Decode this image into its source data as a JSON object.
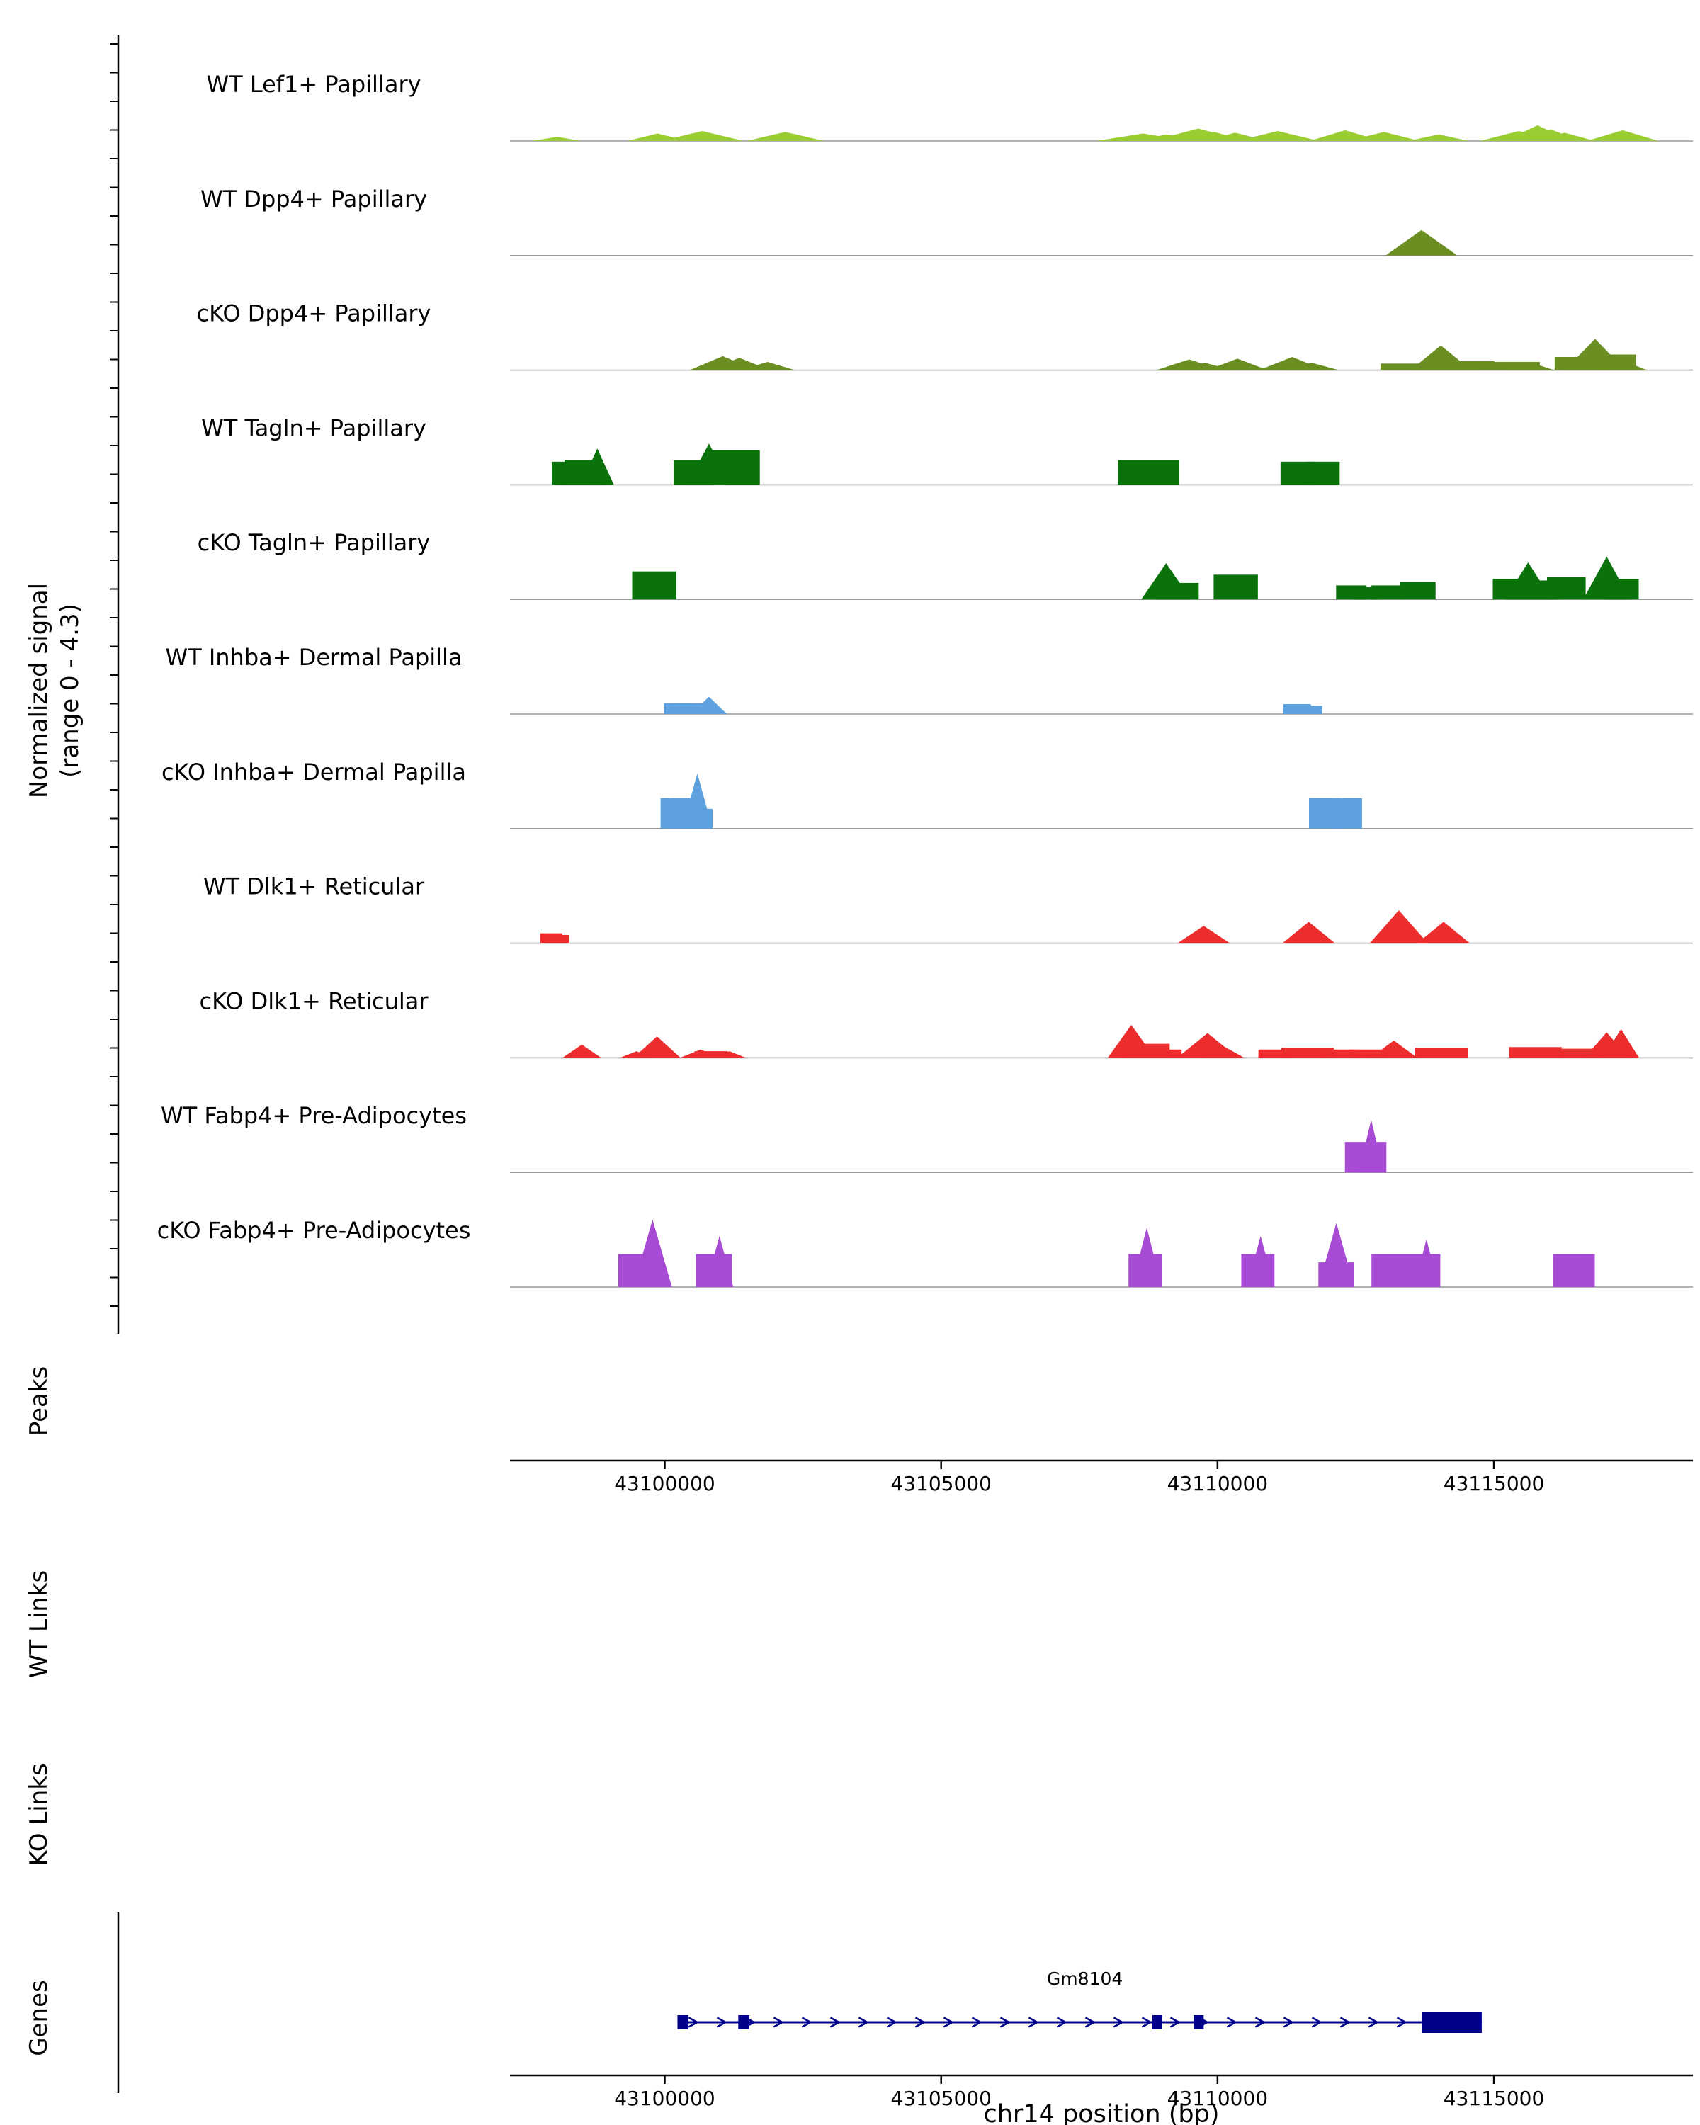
{
  "chart_data": {
    "type": "area",
    "title": "",
    "xlabel": "chr14 position (bp)",
    "ylabel_lines": [
      "Normalized signal",
      "(range 0 - 4.3)"
    ],
    "section_labels": {
      "peaks": "Peaks",
      "wt_links": "WT Links",
      "ko_links": "KO Links",
      "genes": "Genes"
    },
    "x_range": [
      43097200,
      43118600
    ],
    "x_ticks": [
      43100000,
      43105000,
      43110000,
      43115000
    ],
    "y_range_per_track": [
      0,
      4.3
    ],
    "tracks": [
      {
        "label": "WT Lef1+ Papillary",
        "color": "#9ACD32",
        "peaks": [
          [
            43098050,
            900,
            0.25,
            "t"
          ],
          [
            43099870,
            1100,
            0.45,
            "t"
          ],
          [
            43100680,
            1500,
            0.6,
            "t"
          ],
          [
            43100940,
            900,
            0.35,
            "t"
          ],
          [
            43102180,
            1400,
            0.55,
            "t"
          ],
          [
            43108650,
            1700,
            0.45,
            "t"
          ],
          [
            43109080,
            1200,
            0.4,
            "t"
          ],
          [
            43109650,
            1700,
            0.75,
            "t"
          ],
          [
            43109940,
            1200,
            0.55,
            "t"
          ],
          [
            43110320,
            1200,
            0.5,
            "t"
          ],
          [
            43111090,
            1500,
            0.6,
            "t"
          ],
          [
            43112310,
            1300,
            0.65,
            "t"
          ],
          [
            43113010,
            1300,
            0.55,
            "t"
          ],
          [
            43114000,
            1100,
            0.4,
            "t"
          ],
          [
            43115450,
            1400,
            0.6,
            "t"
          ],
          [
            43115790,
            1200,
            0.95,
            "t"
          ],
          [
            43116030,
            1100,
            0.7,
            "t"
          ],
          [
            43116280,
            1100,
            0.5,
            "t"
          ],
          [
            43117330,
            1300,
            0.65,
            "t"
          ]
        ]
      },
      {
        "label": "WT Dpp4+ Papillary",
        "color": "#6B8E23",
        "peaks": [
          [
            43113690,
            1300,
            1.55,
            "t"
          ]
        ]
      },
      {
        "label": "cKO Dpp4+ Papillary",
        "color": "#6B8E23",
        "peaks": [
          [
            43101050,
            1200,
            0.85,
            "t"
          ],
          [
            43101350,
            1100,
            0.75,
            "t"
          ],
          [
            43101860,
            1000,
            0.5,
            "t"
          ],
          [
            43109490,
            1200,
            0.65,
            "t"
          ],
          [
            43109770,
            1000,
            0.45,
            "t"
          ],
          [
            43110360,
            1100,
            0.7,
            "t"
          ],
          [
            43111350,
            1200,
            0.8,
            "t"
          ],
          [
            43111700,
            1000,
            0.45,
            "t"
          ],
          [
            43113400,
            900,
            0.4,
            "r"
          ],
          [
            43114040,
            1100,
            1.5,
            "t"
          ],
          [
            43114280,
            900,
            0.7,
            "t"
          ],
          [
            43114560,
            900,
            0.55,
            "r"
          ],
          [
            43115380,
            900,
            0.5,
            "r"
          ],
          [
            43115640,
            900,
            0.5,
            "t"
          ],
          [
            43116600,
            1000,
            0.8,
            "r"
          ],
          [
            43116830,
            1100,
            1.9,
            "t"
          ],
          [
            43117070,
            1000,
            0.95,
            "r"
          ],
          [
            43117320,
            900,
            0.6,
            "t"
          ]
        ]
      },
      {
        "label": "WT Tagln+ Papillary",
        "color": "#0B720B",
        "peaks": [
          [
            43098310,
            700,
            1.4,
            "r"
          ],
          [
            43098540,
            700,
            1.5,
            "r"
          ],
          [
            43098780,
            600,
            2.2,
            "t"
          ],
          [
            43100660,
            1000,
            1.5,
            "r"
          ],
          [
            43100800,
            800,
            2.5,
            "t"
          ],
          [
            43101270,
            900,
            2.1,
            "r"
          ],
          [
            43108750,
            1100,
            1.5,
            "r"
          ],
          [
            43111440,
            600,
            1.4,
            "r"
          ],
          [
            43111910,
            600,
            1.4,
            "r"
          ]
        ]
      },
      {
        "label": "cKO Tagln+ Papillary",
        "color": "#0B720B",
        "peaks": [
          [
            43099810,
            800,
            1.7,
            "r"
          ],
          [
            43109070,
            900,
            2.2,
            "t"
          ],
          [
            43109260,
            800,
            1.0,
            "r"
          ],
          [
            43110330,
            800,
            1.5,
            "r"
          ],
          [
            43112420,
            550,
            0.85,
            "r"
          ],
          [
            43112700,
            500,
            0.75,
            "r"
          ],
          [
            43113060,
            550,
            0.85,
            "r"
          ],
          [
            43113620,
            650,
            1.05,
            "r"
          ],
          [
            43115330,
            700,
            1.25,
            "r"
          ],
          [
            43115620,
            850,
            2.25,
            "t"
          ],
          [
            43115910,
            600,
            1.15,
            "r"
          ],
          [
            43116310,
            700,
            1.35,
            "r"
          ],
          [
            43117040,
            850,
            2.6,
            "t"
          ],
          [
            43117320,
            600,
            1.25,
            "r"
          ]
        ]
      },
      {
        "label": "WT Inhba+ Dermal Papilla",
        "color": "#5DA2DE",
        "peaks": [
          [
            43100240,
            500,
            0.65,
            "r"
          ],
          [
            43100460,
            500,
            0.65,
            "r"
          ],
          [
            43100800,
            650,
            1.05,
            "t"
          ],
          [
            43111440,
            500,
            0.6,
            "r"
          ],
          [
            43111670,
            450,
            0.5,
            "r"
          ]
        ]
      },
      {
        "label": "cKO Inhba+ Dermal Papilla",
        "color": "#5DA2DE",
        "peaks": [
          [
            43100200,
            550,
            1.85,
            "r"
          ],
          [
            43100400,
            550,
            1.85,
            "r"
          ],
          [
            43100590,
            550,
            1.2,
            "r"
          ],
          [
            43100590,
            550,
            3.35,
            "t"
          ],
          [
            43111930,
            550,
            1.85,
            "r"
          ],
          [
            43112340,
            550,
            1.85,
            "r"
          ]
        ]
      },
      {
        "label": "WT Dlk1+ Reticular",
        "color": "#EC2D2D",
        "peaks": [
          [
            43097950,
            400,
            0.6,
            "r"
          ],
          [
            43098100,
            350,
            0.5,
            "r"
          ],
          [
            43109750,
            950,
            1.05,
            "t"
          ],
          [
            43111650,
            950,
            1.3,
            "t"
          ],
          [
            43113280,
            1050,
            2.0,
            "t"
          ],
          [
            43114090,
            950,
            1.3,
            "t"
          ]
        ]
      },
      {
        "label": "cKO Dlk1+ Reticular",
        "color": "#EC2D2D",
        "peaks": [
          [
            43098500,
            700,
            0.8,
            "t"
          ],
          [
            43099490,
            600,
            0.4,
            "t"
          ],
          [
            43099860,
            850,
            1.3,
            "t"
          ],
          [
            43100650,
            750,
            0.5,
            "t"
          ],
          [
            43100840,
            600,
            0.4,
            "r"
          ],
          [
            43101170,
            600,
            0.4,
            "t"
          ],
          [
            43108440,
            850,
            2.0,
            "t"
          ],
          [
            43108710,
            850,
            0.85,
            "r"
          ],
          [
            43109050,
            600,
            0.5,
            "r"
          ],
          [
            43109820,
            1100,
            1.5,
            "t"
          ],
          [
            43110110,
            750,
            0.7,
            "t"
          ],
          [
            43111040,
            600,
            0.5,
            "r"
          ],
          [
            43111630,
            950,
            0.6,
            "r"
          ],
          [
            43112220,
            700,
            0.5,
            "r"
          ],
          [
            43112700,
            650,
            0.5,
            "r"
          ],
          [
            43113190,
            850,
            1.05,
            "t"
          ],
          [
            43114050,
            950,
            0.6,
            "r"
          ],
          [
            43115750,
            950,
            0.65,
            "r"
          ],
          [
            43116570,
            700,
            0.55,
            "r"
          ],
          [
            43117040,
            800,
            1.55,
            "t"
          ],
          [
            43117300,
            650,
            1.75,
            "t"
          ]
        ]
      },
      {
        "label": "WT Fabp4+ Pre-Adipocytes",
        "color": "#A74BD4",
        "peaks": [
          [
            43112680,
            750,
            1.85,
            "r"
          ],
          [
            43112780,
            450,
            3.2,
            "t"
          ]
        ]
      },
      {
        "label": "cKO Fabp4+ Pre-Adipocytes",
        "color": "#A74BD4",
        "peaks": [
          [
            43099460,
            600,
            2.0,
            "r"
          ],
          [
            43099780,
            700,
            4.1,
            "t"
          ],
          [
            43100890,
            650,
            2.0,
            "r"
          ],
          [
            43100990,
            500,
            3.1,
            "t"
          ],
          [
            43108690,
            600,
            2.0,
            "r"
          ],
          [
            43108720,
            550,
            3.6,
            "t"
          ],
          [
            43110730,
            600,
            2.0,
            "r"
          ],
          [
            43110780,
            500,
            3.1,
            "t"
          ],
          [
            43112150,
            650,
            1.5,
            "r"
          ],
          [
            43112150,
            650,
            3.9,
            "t"
          ],
          [
            43113060,
            550,
            2.0,
            "r"
          ],
          [
            43113280,
            500,
            2.0,
            "r"
          ],
          [
            43113510,
            500,
            2.0,
            "r"
          ],
          [
            43113730,
            600,
            2.0,
            "r"
          ],
          [
            43113780,
            450,
            2.9,
            "t"
          ],
          [
            43116340,
            550,
            2.0,
            "r"
          ],
          [
            43116550,
            550,
            2.0,
            "r"
          ]
        ]
      }
    ],
    "gene": {
      "name": "Gm8104",
      "start": 43100230,
      "end": 43114780,
      "strand": "+",
      "color": "#00008B",
      "exons": [
        [
          43100230,
          43100430,
          20
        ],
        [
          43101330,
          43101530,
          20
        ],
        [
          43108820,
          43109000,
          20
        ],
        [
          43109570,
          43109750,
          20
        ],
        [
          43113700,
          43114780,
          30
        ]
      ],
      "label_bp": 43107600
    }
  }
}
